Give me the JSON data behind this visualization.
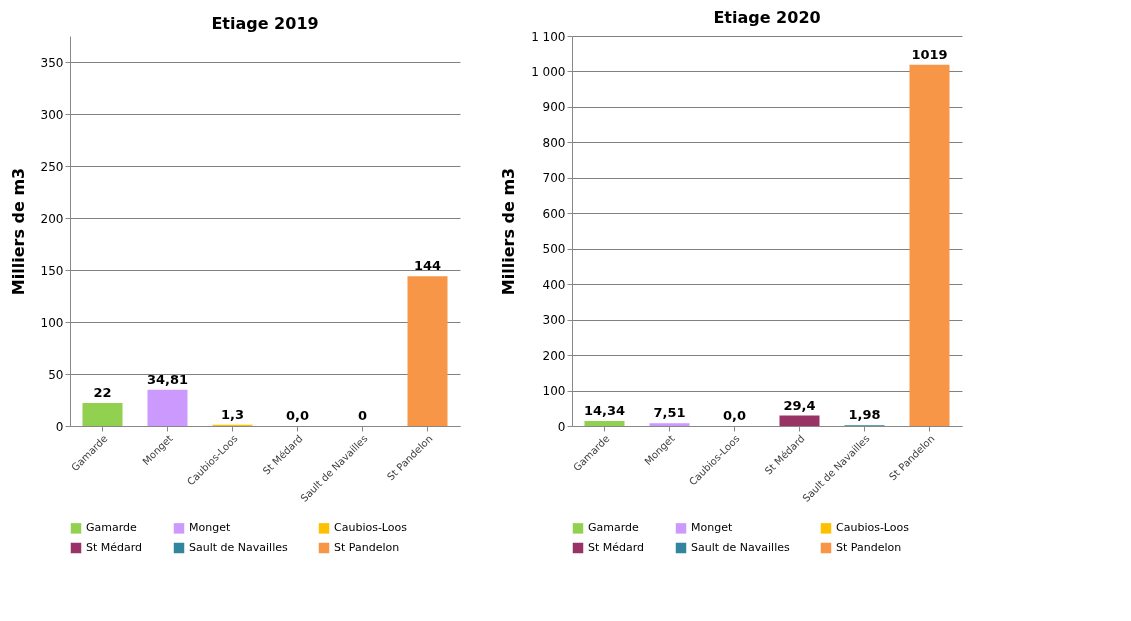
{
  "chart_data": [
    {
      "type": "bar",
      "title": "Etiage 2019",
      "ylabel": "Milliers de m3",
      "categories": [
        "Gamarde",
        "Monget",
        "Caubios-Loos",
        "St Médard",
        "Sault de Navailles",
        "St Pandelon"
      ],
      "series": [
        {
          "name": "Gamarde",
          "color": "#92d050",
          "values": [
            22,
            null,
            null,
            null,
            null,
            null
          ],
          "value_labels": [
            "22",
            null,
            null,
            null,
            null,
            null
          ]
        },
        {
          "name": "Monget",
          "color": "#cc99ff",
          "values": [
            null,
            34.81,
            null,
            null,
            null,
            null
          ],
          "value_labels": [
            null,
            "34,81",
            null,
            null,
            null,
            null
          ]
        },
        {
          "name": "Caubios-Loos",
          "color": "#ffc000",
          "values": [
            null,
            null,
            1.3,
            null,
            null,
            null
          ],
          "value_labels": [
            null,
            null,
            "1,3",
            null,
            null,
            null
          ]
        },
        {
          "name": "St Médard",
          "color": "#993366",
          "values": [
            null,
            null,
            null,
            0.0,
            null,
            null
          ],
          "value_labels": [
            null,
            null,
            null,
            "0,0",
            null,
            null
          ]
        },
        {
          "name": "Sault de Navailles",
          "color": "#31859c",
          "values": [
            null,
            null,
            null,
            null,
            0,
            null
          ],
          "value_labels": [
            null,
            null,
            null,
            null,
            "0",
            null
          ]
        },
        {
          "name": "St Pandelon",
          "color": "#f79646",
          "values": [
            null,
            null,
            null,
            null,
            null,
            144
          ],
          "value_labels": [
            null,
            null,
            null,
            null,
            null,
            "144"
          ]
        }
      ],
      "ylim": [
        0,
        375
      ],
      "yticks": [
        0,
        50,
        100,
        150,
        200,
        250,
        300,
        350
      ],
      "grid": "y",
      "legend": "bottom"
    },
    {
      "type": "bar",
      "title": "Etiage 2020",
      "ylabel": "Milliers de m3",
      "categories": [
        "Gamarde",
        "Monget",
        "Caubios-Loos",
        "St Médard",
        "Sault de Navailles",
        "St Pandelon"
      ],
      "series": [
        {
          "name": "Gamarde",
          "color": "#92d050",
          "values": [
            14.34,
            null,
            null,
            null,
            null,
            null
          ],
          "value_labels": [
            "14,34",
            null,
            null,
            null,
            null,
            null
          ]
        },
        {
          "name": "Monget",
          "color": "#cc99ff",
          "values": [
            null,
            7.51,
            null,
            null,
            null,
            null
          ],
          "value_labels": [
            null,
            "7,51",
            null,
            null,
            null,
            null
          ]
        },
        {
          "name": "Caubios-Loos",
          "color": "#ffc000",
          "values": [
            null,
            null,
            0.0,
            null,
            null,
            null
          ],
          "value_labels": [
            null,
            null,
            "0,0",
            null,
            null,
            null
          ]
        },
        {
          "name": "St Médard",
          "color": "#993366",
          "values": [
            null,
            null,
            null,
            29.4,
            null,
            null
          ],
          "value_labels": [
            null,
            null,
            null,
            "29,4",
            null,
            null
          ]
        },
        {
          "name": "Sault de Navailles",
          "color": "#31859c",
          "values": [
            null,
            null,
            null,
            null,
            1.98,
            null
          ],
          "value_labels": [
            null,
            null,
            null,
            null,
            "1,98",
            null
          ]
        },
        {
          "name": "St Pandelon",
          "color": "#f79646",
          "values": [
            null,
            null,
            null,
            null,
            null,
            1019
          ],
          "value_labels": [
            null,
            null,
            null,
            null,
            null,
            "1019"
          ]
        }
      ],
      "ylim": [
        0,
        1100
      ],
      "yticks": [
        0,
        100,
        200,
        300,
        400,
        500,
        600,
        700,
        800,
        900,
        {
          "value": 1000,
          "label": "1 000"
        },
        {
          "value": 1100,
          "label": "1 100"
        }
      ],
      "grid": "y",
      "legend": "bottom"
    }
  ]
}
